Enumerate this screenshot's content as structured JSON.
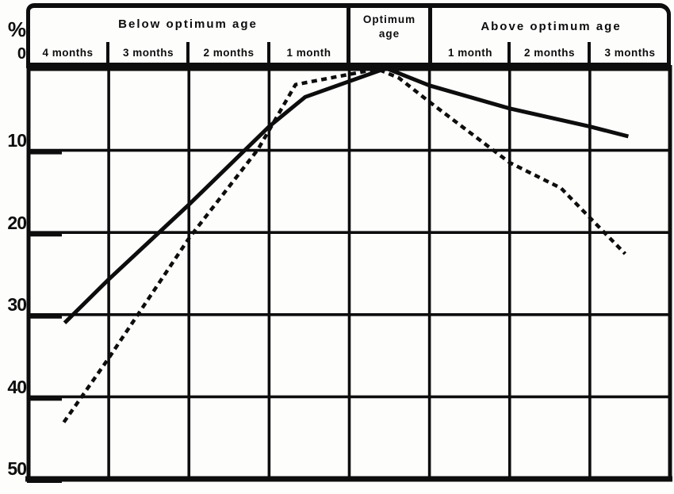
{
  "colors": {
    "ink": "#0d0d0d",
    "paper": "#fdfdfc"
  },
  "y_labels": {
    "percent": "%",
    "t0": "0",
    "t10": "10",
    "t20": "20",
    "t30": "30",
    "t40": "40",
    "t50": "50"
  },
  "header": {
    "below_label": "Below optimum age",
    "below_months": [
      "4 months",
      "3 months",
      "2 months",
      "1 month"
    ],
    "optimum_line1": "Optimum",
    "optimum_line2": "age",
    "above_label": "Above optimum age",
    "above_months": [
      "1 month",
      "2 months",
      "3 months"
    ]
  },
  "chart_data": {
    "type": "line",
    "title": "",
    "x_axis": {
      "n_columns": 8,
      "column_unit": "1 column = 1 month interval; 0 = left edge",
      "groups": [
        {
          "label": "Below optimum age",
          "columns": [
            "4 months",
            "3 months",
            "2 months",
            "1 month"
          ]
        },
        {
          "label": "Optimum age",
          "columns": [
            "Optimum age"
          ]
        },
        {
          "label": "Above optimum age",
          "columns": [
            "1 month",
            "2 months",
            "3 months"
          ]
        }
      ]
    },
    "y_axis": {
      "label": "%",
      "range": [
        0,
        50
      ],
      "ticks": [
        0,
        10,
        20,
        30,
        40,
        50
      ],
      "inverted": true
    },
    "grid": true,
    "legend": "none",
    "series": [
      {
        "name": "solid-line",
        "style": "solid",
        "points": [
          [
            0.45,
            31.0
          ],
          [
            1.0,
            25.7
          ],
          [
            2.0,
            16.6
          ],
          [
            3.0,
            7.1
          ],
          [
            3.45,
            3.5
          ],
          [
            4.46,
            0.0
          ],
          [
            5.0,
            2.1
          ],
          [
            6.0,
            4.9
          ],
          [
            7.0,
            7.1
          ],
          [
            7.48,
            8.3
          ]
        ]
      },
      {
        "name": "dashed-line",
        "style": "dashed",
        "points": [
          [
            0.44,
            43.1
          ],
          [
            1.0,
            35.3
          ],
          [
            2.0,
            20.7
          ],
          [
            2.86,
            9.9
          ],
          [
            3.33,
            2.0
          ],
          [
            4.35,
            0.1
          ],
          [
            4.62,
            1.2
          ],
          [
            5.0,
            4.1
          ],
          [
            6.0,
            11.5
          ],
          [
            6.64,
            14.6
          ],
          [
            7.44,
            22.6
          ]
        ]
      }
    ]
  }
}
